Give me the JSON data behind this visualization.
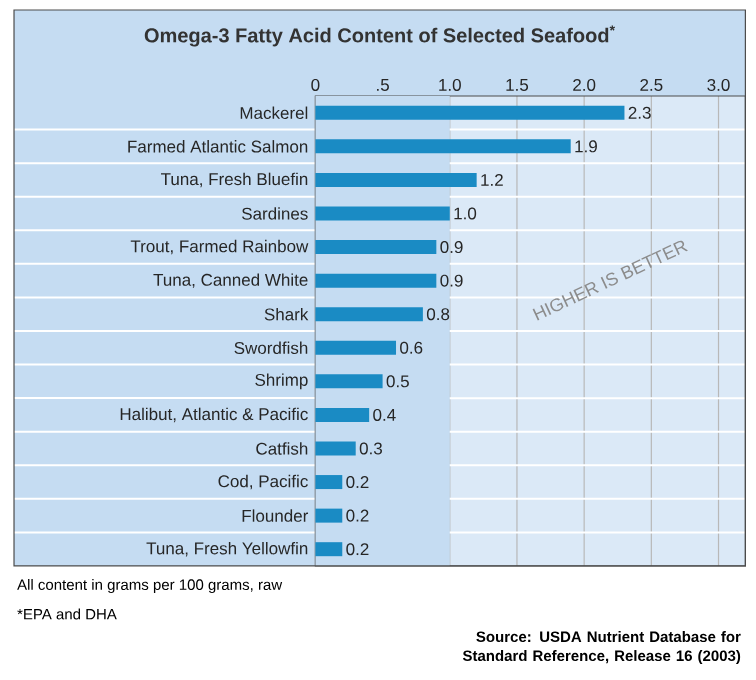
{
  "chart_data": {
    "type": "bar",
    "orientation": "horizontal",
    "title": "Omega-3 Fatty Acid Content of Selected Seafood$^{*}$",
    "categories": [
      "Mackerel",
      "Farmed Atlantic Salmon",
      "Tuna, Fresh Bluefin",
      "Sardines",
      "Trout, Farmed Rainbow",
      "Tuna, Canned White",
      "Shark",
      "Swordfish",
      "Shrimp",
      "Halibut, Atlantic & Pacific",
      "Catfish",
      "Cod, Pacific",
      "Flounder",
      "Tuna, Fresh Yellowfin"
    ],
    "values": [
      2.3,
      1.9,
      1.2,
      1.0,
      0.9,
      0.9,
      0.8,
      0.6,
      0.5,
      0.4,
      0.3,
      0.2,
      0.2,
      0.2
    ],
    "color": "#1a8bc4",
    "xlim": [
      0,
      3.2
    ],
    "xticks": [
      0,
      {
        "value": 0.5,
        "label": ".5"
      },
      {
        "value": 1,
        "label": "1.0"
      },
      {
        "value": 1.5,
        "label": "1.5"
      },
      {
        "value": 2,
        "label": "2.0"
      },
      {
        "value": 2.5,
        "label": "2.5"
      },
      {
        "value": 3,
        "label": "3.0"
      }
    ],
    "grid": "x",
    "value_labels": [
      "2.3",
      "1.9",
      "1.2",
      "1.0",
      "0.9",
      "0.9",
      "0.8",
      "0.6",
      "0.5",
      "0.4",
      "0.3",
      "0.2",
      "0.2",
      "0.2"
    ],
    "bands": [
      {
        "axis": "x",
        "from": 0,
        "to": 1,
        "color": "#c5dcf2"
      }
    ],
    "annotations": [
      "HIGHER IS BETTER",
      "All content in grams per 100 grams, raw",
      "*EPA and DHA",
      "Source: USDA Nutrient Database for Standard Reference, Release 16 (2003)"
    ]
  }
}
